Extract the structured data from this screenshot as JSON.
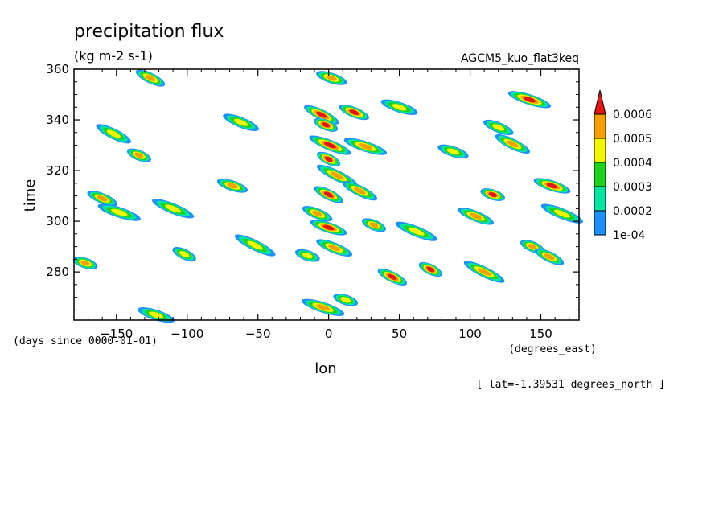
{
  "chart_data": {
    "type": "heatmap",
    "title": "precipitation flux",
    "units": "(kg m-2 s-1)",
    "dataset": "AGCM5_kuo_flat3keq",
    "xlabel": "lon",
    "xunits": "(degrees_east)",
    "ylabel": "time",
    "yunits": "(days since 0000-01-01)",
    "footnote": "[ lat=-1.39531 degrees_north ]",
    "xlim": [
      -180,
      177
    ],
    "ylim": [
      261,
      360
    ],
    "xticks": [
      -150,
      -100,
      -50,
      0,
      50,
      100,
      150
    ],
    "yticks": [
      280,
      300,
      320,
      340,
      360
    ],
    "colorbar": {
      "levels": [
        "1e-04",
        "0.0002",
        "0.0003",
        "0.0004",
        "0.0005",
        "0.0006"
      ],
      "colors": [
        "#1e90ff",
        "#00e5a0",
        "#1ed21e",
        "#f5f500",
        "#f5a000",
        "#e61414"
      ]
    },
    "features": [
      {
        "lon": -172,
        "time": 283.5,
        "peak": 0.00055
      },
      {
        "lon": -160,
        "time": 309.0,
        "peak": 0.0005
      },
      {
        "lon": -152,
        "time": 334.5,
        "peak": 0.0004
      },
      {
        "lon": -148,
        "time": 303.5,
        "peak": 0.0004
      },
      {
        "lon": -134,
        "time": 326.0,
        "peak": 0.00055
      },
      {
        "lon": -126,
        "time": 356.5,
        "peak": 0.0005
      },
      {
        "lon": -122,
        "time": 263.0,
        "peak": 0.0004
      },
      {
        "lon": -110,
        "time": 305.0,
        "peak": 0.0004
      },
      {
        "lon": -102,
        "time": 287.0,
        "peak": 0.0004
      },
      {
        "lon": -68,
        "time": 314.0,
        "peak": 0.0005
      },
      {
        "lon": -62,
        "time": 339.0,
        "peak": 0.0004
      },
      {
        "lon": -52,
        "time": 290.5,
        "peak": 0.0004
      },
      {
        "lon": -15,
        "time": 286.5,
        "peak": 0.0004
      },
      {
        "lon": -8,
        "time": 303.0,
        "peak": 0.0005
      },
      {
        "lon": -5,
        "time": 342.0,
        "peak": 0.0006
      },
      {
        "lon": -4,
        "time": 266.0,
        "peak": 0.00055
      },
      {
        "lon": -2,
        "time": 338.0,
        "peak": 0.0006
      },
      {
        "lon": 0,
        "time": 310.5,
        "peak": 0.0006
      },
      {
        "lon": 0,
        "time": 297.5,
        "peak": 0.0006
      },
      {
        "lon": 1,
        "time": 330.0,
        "peak": 0.0006
      },
      {
        "lon": 0,
        "time": 324.5,
        "peak": 0.0006
      },
      {
        "lon": 2,
        "time": 356.5,
        "peak": 0.0005
      },
      {
        "lon": 4,
        "time": 289.5,
        "peak": 0.0005
      },
      {
        "lon": 6,
        "time": 318.0,
        "peak": 0.0005
      },
      {
        "lon": 12,
        "time": 269.0,
        "peak": 0.0004
      },
      {
        "lon": 18,
        "time": 343.0,
        "peak": 0.0006
      },
      {
        "lon": 22,
        "time": 312.0,
        "peak": 0.0005
      },
      {
        "lon": 26,
        "time": 329.5,
        "peak": 0.0005
      },
      {
        "lon": 32,
        "time": 298.5,
        "peak": 0.0005
      },
      {
        "lon": 45,
        "time": 278.0,
        "peak": 0.0006
      },
      {
        "lon": 50,
        "time": 345.0,
        "peak": 0.0004
      },
      {
        "lon": 62,
        "time": 296.0,
        "peak": 0.0004
      },
      {
        "lon": 72,
        "time": 281.0,
        "peak": 0.0006
      },
      {
        "lon": 88,
        "time": 327.5,
        "peak": 0.0004
      },
      {
        "lon": 104,
        "time": 302.0,
        "peak": 0.0005
      },
      {
        "lon": 110,
        "time": 280.0,
        "peak": 0.0005
      },
      {
        "lon": 116,
        "time": 310.5,
        "peak": 0.0006
      },
      {
        "lon": 120,
        "time": 337.0,
        "peak": 0.0004
      },
      {
        "lon": 130,
        "time": 330.5,
        "peak": 0.0005
      },
      {
        "lon": 142,
        "time": 348.0,
        "peak": 0.0006
      },
      {
        "lon": 144,
        "time": 290.0,
        "peak": 0.0005
      },
      {
        "lon": 156,
        "time": 286.0,
        "peak": 0.0005
      },
      {
        "lon": 158,
        "time": 314.0,
        "peak": 0.0006
      },
      {
        "lon": 165,
        "time": 303.0,
        "peak": 0.0004
      }
    ]
  }
}
